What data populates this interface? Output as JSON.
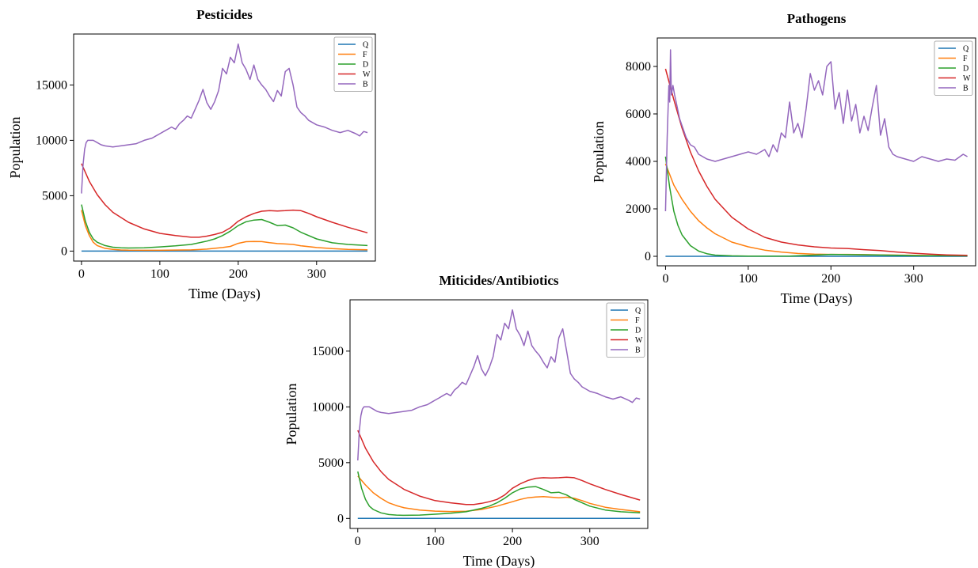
{
  "chart_data": [
    {
      "type": "line",
      "title": "Pesticides",
      "xlabel": "Time (Days)",
      "ylabel": "Population",
      "xlim": [
        -10,
        375
      ],
      "ylim": [
        -900,
        19600
      ],
      "xticks": [
        0,
        100,
        200,
        300
      ],
      "yticks": [
        0,
        5000,
        10000,
        15000
      ],
      "legend": "top-right",
      "series": [
        {
          "name": "Q",
          "color": "#1f77b4",
          "x": [
            0,
            365
          ],
          "y": [
            0,
            0
          ]
        },
        {
          "name": "F",
          "color": "#ff7f0e",
          "x": [
            0,
            5,
            10,
            15,
            20,
            30,
            40,
            50,
            60,
            80,
            100,
            120,
            140,
            160,
            180,
            190,
            200,
            210,
            220,
            230,
            240,
            250,
            260,
            270,
            280,
            300,
            320,
            340,
            365
          ],
          "y": [
            3700,
            2300,
            1400,
            800,
            500,
            250,
            150,
            100,
            80,
            70,
            75,
            90,
            110,
            180,
            320,
            420,
            700,
            850,
            870,
            860,
            760,
            680,
            640,
            600,
            480,
            320,
            220,
            160,
            120
          ]
        },
        {
          "name": "D",
          "color": "#2ca02c",
          "x": [
            0,
            5,
            10,
            15,
            20,
            30,
            40,
            50,
            60,
            80,
            100,
            120,
            140,
            160,
            170,
            180,
            190,
            200,
            210,
            220,
            230,
            240,
            250,
            260,
            270,
            280,
            300,
            320,
            340,
            365
          ],
          "y": [
            4200,
            2700,
            1700,
            1100,
            800,
            500,
            350,
            300,
            280,
            300,
            380,
            470,
            600,
            900,
            1100,
            1400,
            1800,
            2300,
            2650,
            2800,
            2850,
            2600,
            2300,
            2350,
            2100,
            1700,
            1100,
            750,
            600,
            500
          ]
        },
        {
          "name": "W",
          "color": "#d62728",
          "x": [
            0,
            10,
            20,
            30,
            40,
            60,
            80,
            100,
            120,
            140,
            150,
            160,
            170,
            180,
            190,
            200,
            210,
            220,
            230,
            240,
            250,
            260,
            270,
            280,
            290,
            300,
            320,
            340,
            365
          ],
          "y": [
            7900,
            6300,
            5100,
            4200,
            3500,
            2600,
            2000,
            1600,
            1400,
            1250,
            1250,
            1350,
            1500,
            1700,
            2100,
            2700,
            3100,
            3400,
            3600,
            3650,
            3620,
            3650,
            3700,
            3650,
            3400,
            3100,
            2600,
            2150,
            1650
          ]
        },
        {
          "name": "B",
          "color": "#9467bd",
          "x": [
            0,
            2,
            4,
            6,
            8,
            10,
            15,
            20,
            25,
            30,
            40,
            50,
            60,
            70,
            80,
            90,
            95,
            100,
            105,
            110,
            115,
            120,
            125,
            130,
            135,
            140,
            145,
            150,
            155,
            160,
            165,
            170,
            175,
            180,
            185,
            190,
            195,
            200,
            205,
            210,
            215,
            220,
            225,
            230,
            235,
            240,
            245,
            250,
            255,
            260,
            265,
            270,
            275,
            280,
            285,
            290,
            300,
            310,
            320,
            330,
            340,
            350,
            355,
            360,
            365
          ],
          "y": [
            5200,
            7800,
            9200,
            9800,
            10000,
            10000,
            10000,
            9800,
            9600,
            9500,
            9400,
            9500,
            9600,
            9700,
            10000,
            10200,
            10400,
            10600,
            10800,
            11000,
            11200,
            11000,
            11500,
            11800,
            12200,
            12000,
            12800,
            13600,
            14600,
            13400,
            12800,
            13500,
            14500,
            16500,
            16000,
            17500,
            17000,
            18700,
            17000,
            16400,
            15500,
            16800,
            15500,
            15000,
            14600,
            14000,
            13500,
            14500,
            14000,
            16200,
            16500,
            15000,
            13000,
            12500,
            12200,
            11800,
            11400,
            11200,
            10900,
            10700,
            10900,
            10600,
            10400,
            10800,
            10700
          ]
        }
      ]
    },
    {
      "type": "line",
      "title": "Pathogens",
      "xlabel": "Time (Days)",
      "ylabel": "Population",
      "xlim": [
        -10,
        375
      ],
      "ylim": [
        -400,
        9200
      ],
      "xticks": [
        0,
        100,
        200,
        300
      ],
      "yticks": [
        0,
        2000,
        4000,
        6000,
        8000
      ],
      "legend": "top-right",
      "series": [
        {
          "name": "Q",
          "color": "#1f77b4",
          "x": [
            0,
            365
          ],
          "y": [
            0,
            0
          ]
        },
        {
          "name": "F",
          "color": "#ff7f0e",
          "x": [
            0,
            10,
            20,
            30,
            40,
            50,
            60,
            80,
            100,
            120,
            140,
            160,
            180,
            200,
            220,
            240,
            260,
            280,
            300,
            320,
            340,
            365
          ],
          "y": [
            3900,
            3000,
            2400,
            1900,
            1500,
            1200,
            950,
            600,
            400,
            260,
            180,
            120,
            90,
            80,
            80,
            70,
            60,
            50,
            40,
            30,
            30,
            20
          ]
        },
        {
          "name": "D",
          "color": "#2ca02c",
          "x": [
            0,
            5,
            10,
            15,
            20,
            30,
            40,
            50,
            60,
            80,
            100,
            150,
            200,
            250,
            300,
            365
          ],
          "y": [
            4200,
            2900,
            1900,
            1300,
            900,
            450,
            220,
            110,
            50,
            20,
            10,
            10,
            80,
            60,
            30,
            20
          ]
        },
        {
          "name": "W",
          "color": "#d62728",
          "x": [
            0,
            10,
            20,
            30,
            40,
            50,
            60,
            80,
            100,
            120,
            140,
            160,
            180,
            200,
            220,
            240,
            260,
            280,
            300,
            320,
            340,
            365
          ],
          "y": [
            7900,
            6600,
            5400,
            4400,
            3600,
            2950,
            2400,
            1650,
            1150,
            800,
            600,
            480,
            400,
            350,
            330,
            280,
            240,
            180,
            130,
            90,
            60,
            40
          ]
        },
        {
          "name": "B",
          "color": "#9467bd",
          "x": [
            0,
            2,
            4,
            5,
            6,
            7,
            9,
            11,
            14,
            17,
            20,
            25,
            30,
            35,
            40,
            50,
            60,
            70,
            80,
            90,
            100,
            110,
            120,
            125,
            130,
            135,
            140,
            145,
            150,
            155,
            160,
            165,
            170,
            175,
            180,
            185,
            190,
            195,
            200,
            205,
            210,
            215,
            220,
            225,
            230,
            235,
            240,
            245,
            250,
            255,
            260,
            265,
            270,
            275,
            280,
            290,
            300,
            310,
            320,
            330,
            340,
            350,
            360,
            365
          ],
          "y": [
            1900,
            5000,
            7200,
            6500,
            8700,
            6800,
            7200,
            6800,
            6300,
            5800,
            5500,
            5000,
            4700,
            4600,
            4300,
            4100,
            4000,
            4100,
            4200,
            4300,
            4400,
            4300,
            4500,
            4200,
            4700,
            4400,
            5200,
            5000,
            6500,
            5200,
            5600,
            5000,
            6200,
            7700,
            7000,
            7400,
            6800,
            8000,
            8200,
            6200,
            6900,
            5600,
            7000,
            5700,
            6400,
            5200,
            5900,
            5300,
            6300,
            7200,
            5100,
            5800,
            4600,
            4300,
            4200,
            4100,
            4000,
            4200,
            4100,
            4000,
            4100,
            4050,
            4300,
            4200
          ]
        }
      ]
    },
    {
      "type": "line",
      "title": "Miticides/Antibiotics",
      "xlabel": "Time (Days)",
      "ylabel": "Population",
      "xlim": [
        -10,
        375
      ],
      "ylim": [
        -900,
        19600
      ],
      "xticks": [
        0,
        100,
        200,
        300
      ],
      "yticks": [
        0,
        5000,
        10000,
        15000
      ],
      "legend": "top-right",
      "series": [
        {
          "name": "Q",
          "color": "#1f77b4",
          "x": [
            0,
            365
          ],
          "y": [
            0,
            0
          ]
        },
        {
          "name": "F",
          "color": "#ff7f0e",
          "x": [
            0,
            10,
            20,
            30,
            40,
            50,
            60,
            80,
            100,
            120,
            140,
            160,
            180,
            200,
            210,
            220,
            230,
            240,
            250,
            260,
            270,
            280,
            290,
            300,
            320,
            340,
            365
          ],
          "y": [
            3800,
            3000,
            2300,
            1800,
            1400,
            1150,
            950,
            750,
            650,
            620,
            640,
            800,
            1100,
            1500,
            1700,
            1850,
            1920,
            1950,
            1900,
            1850,
            1900,
            1800,
            1600,
            1350,
            1000,
            800,
            600
          ]
        },
        {
          "name": "D",
          "color": "#2ca02c",
          "x": [
            0,
            5,
            10,
            15,
            20,
            30,
            40,
            50,
            60,
            80,
            100,
            120,
            140,
            160,
            170,
            180,
            190,
            200,
            210,
            220,
            230,
            240,
            250,
            260,
            270,
            280,
            300,
            320,
            340,
            365
          ],
          "y": [
            4200,
            2700,
            1700,
            1100,
            800,
            500,
            350,
            300,
            280,
            300,
            380,
            470,
            600,
            900,
            1100,
            1400,
            1800,
            2300,
            2650,
            2800,
            2850,
            2600,
            2300,
            2350,
            2100,
            1700,
            1100,
            750,
            600,
            500
          ]
        },
        {
          "name": "W",
          "color": "#d62728",
          "x": [
            0,
            10,
            20,
            30,
            40,
            60,
            80,
            100,
            120,
            140,
            150,
            160,
            170,
            180,
            190,
            200,
            210,
            220,
            230,
            240,
            250,
            260,
            270,
            280,
            290,
            300,
            320,
            340,
            365
          ],
          "y": [
            7900,
            6300,
            5100,
            4200,
            3500,
            2600,
            2000,
            1600,
            1400,
            1250,
            1250,
            1350,
            1500,
            1700,
            2100,
            2700,
            3100,
            3400,
            3600,
            3650,
            3620,
            3650,
            3700,
            3650,
            3400,
            3100,
            2600,
            2150,
            1650
          ]
        },
        {
          "name": "B",
          "color": "#9467bd",
          "x": [
            0,
            2,
            4,
            6,
            8,
            10,
            15,
            20,
            25,
            30,
            40,
            50,
            60,
            70,
            80,
            90,
            95,
            100,
            105,
            110,
            115,
            120,
            125,
            130,
            135,
            140,
            145,
            150,
            155,
            160,
            165,
            170,
            175,
            180,
            185,
            190,
            195,
            200,
            205,
            210,
            215,
            220,
            225,
            230,
            235,
            240,
            245,
            250,
            255,
            260,
            265,
            270,
            275,
            280,
            285,
            290,
            300,
            310,
            320,
            330,
            340,
            350,
            355,
            360,
            365
          ],
          "y": [
            5200,
            7800,
            9200,
            9800,
            10000,
            10000,
            10000,
            9800,
            9600,
            9500,
            9400,
            9500,
            9600,
            9700,
            10000,
            10200,
            10400,
            10600,
            10800,
            11000,
            11200,
            11000,
            11500,
            11800,
            12200,
            12000,
            12800,
            13600,
            14600,
            13400,
            12800,
            13500,
            14500,
            16500,
            16000,
            17500,
            17000,
            18700,
            17000,
            16400,
            15500,
            16800,
            15500,
            15000,
            14600,
            14000,
            13500,
            14500,
            14000,
            16200,
            17000,
            15000,
            13000,
            12500,
            12200,
            11800,
            11400,
            11200,
            10900,
            10700,
            10900,
            10600,
            10400,
            10800,
            10700
          ]
        }
      ]
    }
  ]
}
